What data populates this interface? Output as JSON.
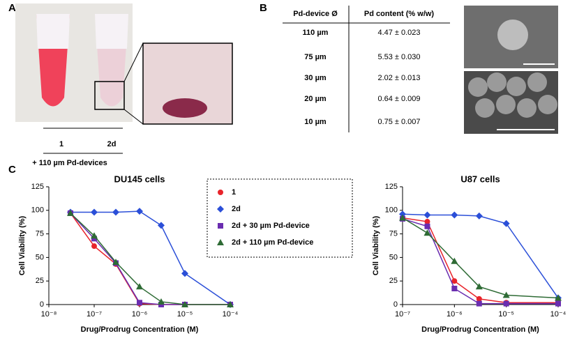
{
  "panels": {
    "a": {
      "label": "A",
      "tube_labels": [
        "1",
        "2d"
      ],
      "caption": "+ 110 µm Pd-devices"
    },
    "b": {
      "label": "B",
      "table": {
        "header": [
          "Pd-device Ø",
          "Pd content (% w/w)"
        ],
        "rows": [
          [
            "110 µm",
            "4.47 ± 0.023"
          ],
          [
            "75 µm",
            "5.53 ± 0.030"
          ],
          [
            "30 µm",
            "2.02 ± 0.013"
          ],
          [
            "20 µm",
            "0.64 ± 0.009"
          ],
          [
            "10 µm",
            "0.75 ± 0.007"
          ]
        ]
      }
    },
    "c": {
      "label": "C"
    }
  },
  "chart_data": [
    {
      "type": "line",
      "title": "DU145 cells",
      "x_label": "Drug/Prodrug Concentration (M)",
      "y_label": "Cell Viability (%)",
      "log_x": true,
      "xlim": [
        1e-08,
        0.0001
      ],
      "xticks": [
        {
          "value": 1e-08,
          "label": "10⁻⁸"
        },
        {
          "value": 1e-07,
          "label": "10⁻⁷"
        },
        {
          "value": 1e-06,
          "label": "10⁻⁶"
        },
        {
          "value": 1e-05,
          "label": "10⁻⁵"
        },
        {
          "value": 0.0001,
          "label": "10⁻⁴"
        }
      ],
      "ylim": [
        0,
        125
      ],
      "yticks": [
        0,
        25,
        50,
        75,
        100,
        125
      ],
      "x": [
        3e-08,
        1e-07,
        3e-07,
        1e-06,
        3e-06,
        1e-05,
        0.0001
      ],
      "series": [
        {
          "name": "1",
          "color": "#e8242b",
          "marker": "circle",
          "values": [
            97,
            62,
            43,
            1,
            0,
            0,
            0
          ]
        },
        {
          "name": "2d",
          "color": "#2b4fd8",
          "marker": "diamond",
          "values": [
            98,
            98,
            98,
            99,
            84,
            33,
            0
          ]
        },
        {
          "name": "2d + 30 µm Pd-device",
          "color": "#6a2db0",
          "marker": "square",
          "values": [
            97,
            70,
            44,
            2,
            0,
            0,
            0
          ]
        },
        {
          "name": "2d + 110 µm Pd-device",
          "color": "#2e6b35",
          "marker": "triangle",
          "values": [
            97,
            73,
            45,
            19,
            3,
            0,
            0
          ]
        }
      ]
    },
    {
      "type": "line",
      "title": "U87 cells",
      "x_label": "Drug/Prodrug Concentration (M)",
      "y_label": "Cell Viability (%)",
      "log_x": true,
      "xlim": [
        1e-07,
        0.0001
      ],
      "xticks": [
        {
          "value": 1e-07,
          "label": "10⁻⁷"
        },
        {
          "value": 1e-06,
          "label": "10⁻⁶"
        },
        {
          "value": 1e-05,
          "label": "10⁻⁵"
        },
        {
          "value": 0.0001,
          "label": "10⁻⁴"
        }
      ],
      "ylim": [
        0,
        125
      ],
      "yticks": [
        0,
        25,
        50,
        75,
        100,
        125
      ],
      "x": [
        1e-07,
        3e-07,
        1e-06,
        3e-06,
        1e-05,
        0.0001
      ],
      "series": [
        {
          "name": "1",
          "color": "#e8242b",
          "marker": "circle",
          "values": [
            92,
            88,
            25,
            6,
            2,
            2
          ]
        },
        {
          "name": "2d",
          "color": "#2b4fd8",
          "marker": "diamond",
          "values": [
            96,
            95,
            95,
            94,
            86,
            7
          ]
        },
        {
          "name": "2d + 30 µm Pd-device",
          "color": "#6a2db0",
          "marker": "square",
          "values": [
            91,
            83,
            17,
            1,
            1,
            1
          ]
        },
        {
          "name": "2d + 110 µm Pd-device",
          "color": "#2e6b35",
          "marker": "triangle",
          "values": [
            92,
            76,
            46,
            19,
            10,
            7
          ]
        }
      ]
    }
  ]
}
